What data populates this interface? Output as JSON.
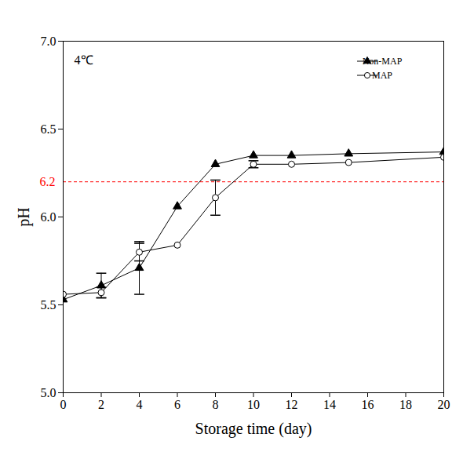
{
  "chart_data": {
    "type": "line",
    "xlabel": "Storage time (day)",
    "ylabel": "pH",
    "annotations": [
      "4℃"
    ],
    "x": [
      0,
      2,
      4,
      6,
      8,
      10,
      12,
      15,
      20
    ],
    "series": [
      {
        "name": "Non-MAP",
        "color": "#000000",
        "marker": "triangle",
        "values": [
          5.53,
          5.61,
          5.71,
          6.06,
          6.3,
          6.35,
          6.35,
          6.36,
          6.37
        ],
        "errors": [
          null,
          0.07,
          0.15,
          null,
          null,
          null,
          null,
          null,
          null
        ]
      },
      {
        "name": "MAP",
        "color": "#000000",
        "marker": "open-circle",
        "values": [
          5.56,
          5.57,
          5.8,
          5.84,
          6.11,
          6.3,
          6.3,
          6.31,
          6.34
        ],
        "errors": [
          null,
          0.03,
          0.05,
          null,
          0.1,
          0.02,
          null,
          null,
          null
        ]
      }
    ],
    "reference_lines": [
      {
        "y": 6.2,
        "label": "6.2",
        "color": "#ff0000",
        "line_style": "dashed"
      }
    ],
    "xlim": [
      0,
      20
    ],
    "ylim": [
      5.0,
      7.0
    ],
    "xticks": [
      0,
      2,
      4,
      6,
      8,
      10,
      12,
      14,
      16,
      18,
      20
    ],
    "yticks": [
      {
        "value": 5.0,
        "label": "5.0"
      },
      5.5,
      {
        "value": 6.0,
        "label": "6.0"
      },
      6.5,
      {
        "value": 7.0,
        "label": "7.0"
      }
    ],
    "legend": "top-right",
    "grid": false
  }
}
